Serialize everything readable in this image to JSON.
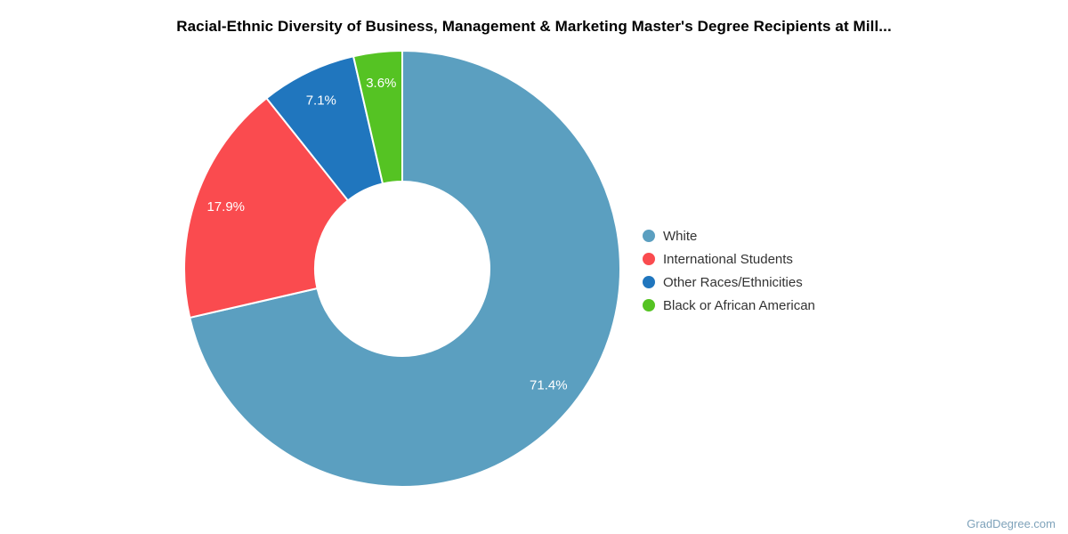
{
  "title": "Racial-Ethnic Diversity of Business, Management & Marketing Master's Degree Recipients at Mill...",
  "watermark": "GradDegree.com",
  "colors": {
    "title_text": "#000000",
    "legend_text": "#333333",
    "slice_label_text": "#ffffff",
    "watermark_text": "#7ea2ba",
    "slice_stroke": "#ffffff",
    "background": "#ffffff"
  },
  "chart_data": {
    "type": "pie",
    "subtype": "donut",
    "title": "Racial-Ethnic Diversity of Business, Management & Marketing Master's Degree Recipients at Mill...",
    "legend_position": "right",
    "start_angle_deg": 0,
    "direction": "clockwise",
    "inner_radius_ratio": 0.4,
    "series": [
      {
        "name": "White",
        "value": 71.4,
        "label": "71.4%",
        "color": "#5b9fc0"
      },
      {
        "name": "International Students",
        "value": 17.9,
        "label": "17.9%",
        "color": "#fa4b4f"
      },
      {
        "name": "Other Races/Ethnicities",
        "value": 7.1,
        "label": "7.1%",
        "color": "#2076be"
      },
      {
        "name": "Black or African American",
        "value": 3.6,
        "label": "3.6%",
        "color": "#55c323"
      }
    ]
  }
}
